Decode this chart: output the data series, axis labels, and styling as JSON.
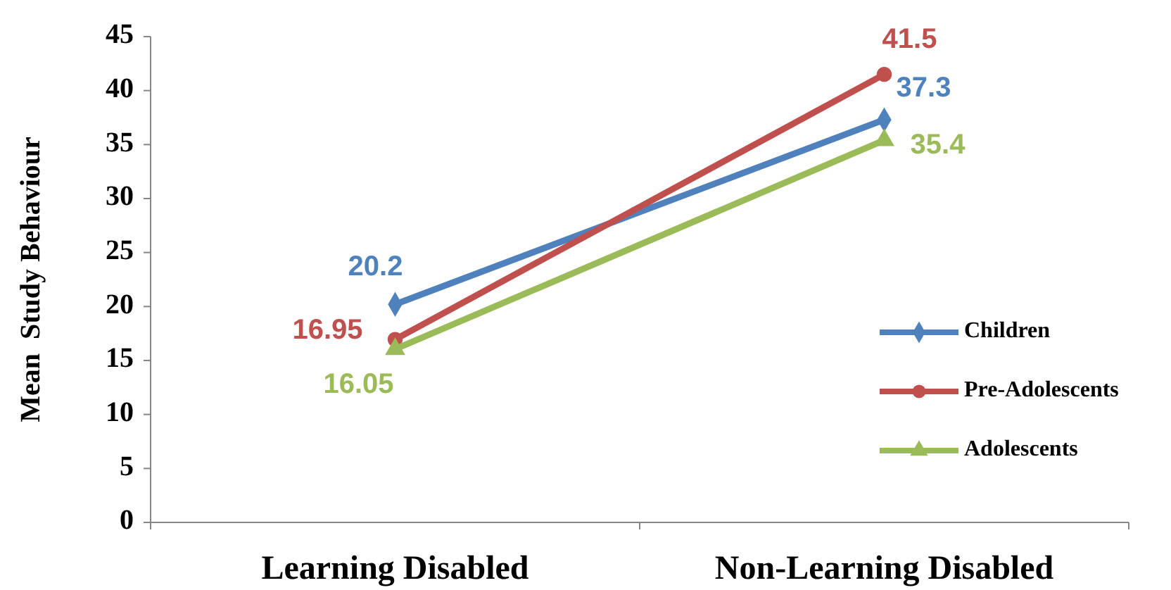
{
  "chart_data": {
    "type": "line",
    "ylabel": "Mean  Study Behaviour",
    "categories": [
      "Learning Disabled",
      "Non-Learning Disabled"
    ],
    "series": [
      {
        "name": "Children",
        "color": "#4f81bd",
        "marker": "diamond",
        "values": [
          20.2,
          37.3
        ]
      },
      {
        "name": "Pre-Adolescents",
        "color": "#c0504d",
        "marker": "circle",
        "values": [
          16.95,
          41.5
        ]
      },
      {
        "name": "Adolescents",
        "color": "#9bbb59",
        "marker": "triangle",
        "values": [
          16.05,
          35.4
        ]
      }
    ],
    "ylim": [
      0,
      45
    ],
    "yticks": [
      0,
      5,
      10,
      15,
      20,
      25,
      30,
      35,
      40,
      45
    ],
    "data_labels": true,
    "legend": "right",
    "grid": false
  }
}
